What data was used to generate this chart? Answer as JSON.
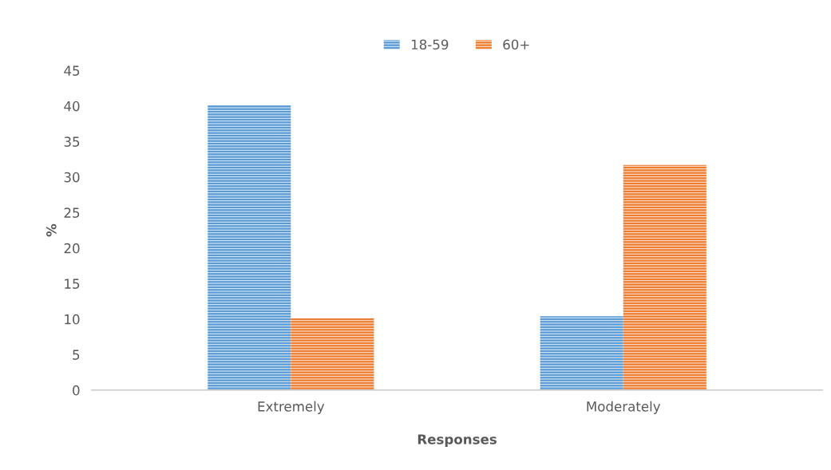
{
  "chart_data": {
    "type": "bar",
    "xlabel": "Responses",
    "ylabel": "%",
    "categories": [
      "Extremely",
      "Moderately"
    ],
    "series": [
      {
        "name": "18-59",
        "color": "#5b9bd5",
        "values": [
          40.1,
          10.4
        ]
      },
      {
        "name": "60+",
        "color": "#ed7d31",
        "values": [
          10.1,
          31.7
        ]
      }
    ],
    "ylim": [
      0,
      45
    ],
    "yticks": [
      0,
      5,
      10,
      15,
      20,
      25,
      30,
      35,
      40,
      45
    ],
    "grid": false,
    "legend": "top"
  }
}
